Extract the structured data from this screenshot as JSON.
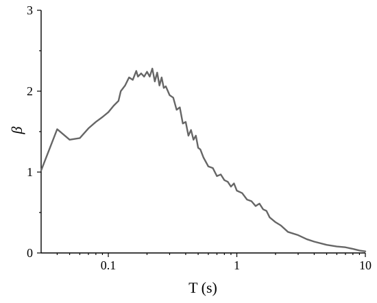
{
  "chart_data": {
    "type": "line",
    "title": "",
    "xlabel": "T (s)",
    "ylabel": "β",
    "xscale": "log",
    "xlim": [
      0.03,
      10
    ],
    "ylim": [
      0,
      3
    ],
    "xticks": [
      {
        "value": 0.1,
        "label": "0.1"
      },
      {
        "value": 1,
        "label": "1"
      },
      {
        "value": 10,
        "label": "10"
      }
    ],
    "yticks": [
      {
        "value": 0,
        "label": "0"
      },
      {
        "value": 1,
        "label": "1"
      },
      {
        "value": 2,
        "label": "2"
      },
      {
        "value": 3,
        "label": "3"
      }
    ],
    "grid": false,
    "legend": "none",
    "line_color": "#666666",
    "series": [
      {
        "x": [
          0.03,
          0.04,
          0.05,
          0.06,
          0.07,
          0.08,
          0.09,
          0.1,
          0.11,
          0.12,
          0.125,
          0.135,
          0.145,
          0.155,
          0.165,
          0.17,
          0.18,
          0.19,
          0.2,
          0.21,
          0.22,
          0.23,
          0.24,
          0.25,
          0.26,
          0.27,
          0.28,
          0.3,
          0.32,
          0.34,
          0.36,
          0.38,
          0.4,
          0.42,
          0.44,
          0.46,
          0.48,
          0.5,
          0.52,
          0.55,
          0.6,
          0.65,
          0.7,
          0.75,
          0.8,
          0.85,
          0.9,
          0.95,
          1.0,
          1.1,
          1.2,
          1.3,
          1.4,
          1.5,
          1.6,
          1.7,
          1.8,
          2.0,
          2.2,
          2.5,
          3.0,
          3.5,
          4.0,
          5.0,
          6.0,
          7.0,
          8.0,
          9.0,
          10.0
        ],
        "y": [
          1.02,
          1.53,
          1.4,
          1.42,
          1.54,
          1.62,
          1.68,
          1.74,
          1.82,
          1.88,
          2.0,
          2.07,
          2.17,
          2.14,
          2.25,
          2.18,
          2.22,
          2.18,
          2.24,
          2.18,
          2.28,
          2.12,
          2.23,
          2.07,
          2.17,
          2.04,
          2.06,
          1.95,
          1.92,
          1.77,
          1.8,
          1.6,
          1.62,
          1.45,
          1.52,
          1.4,
          1.45,
          1.3,
          1.28,
          1.18,
          1.07,
          1.05,
          0.95,
          0.97,
          0.9,
          0.88,
          0.82,
          0.86,
          0.77,
          0.74,
          0.66,
          0.64,
          0.58,
          0.61,
          0.54,
          0.52,
          0.44,
          0.38,
          0.34,
          0.26,
          0.22,
          0.17,
          0.14,
          0.1,
          0.08,
          0.07,
          0.05,
          0.03,
          0.02
        ]
      }
    ]
  }
}
